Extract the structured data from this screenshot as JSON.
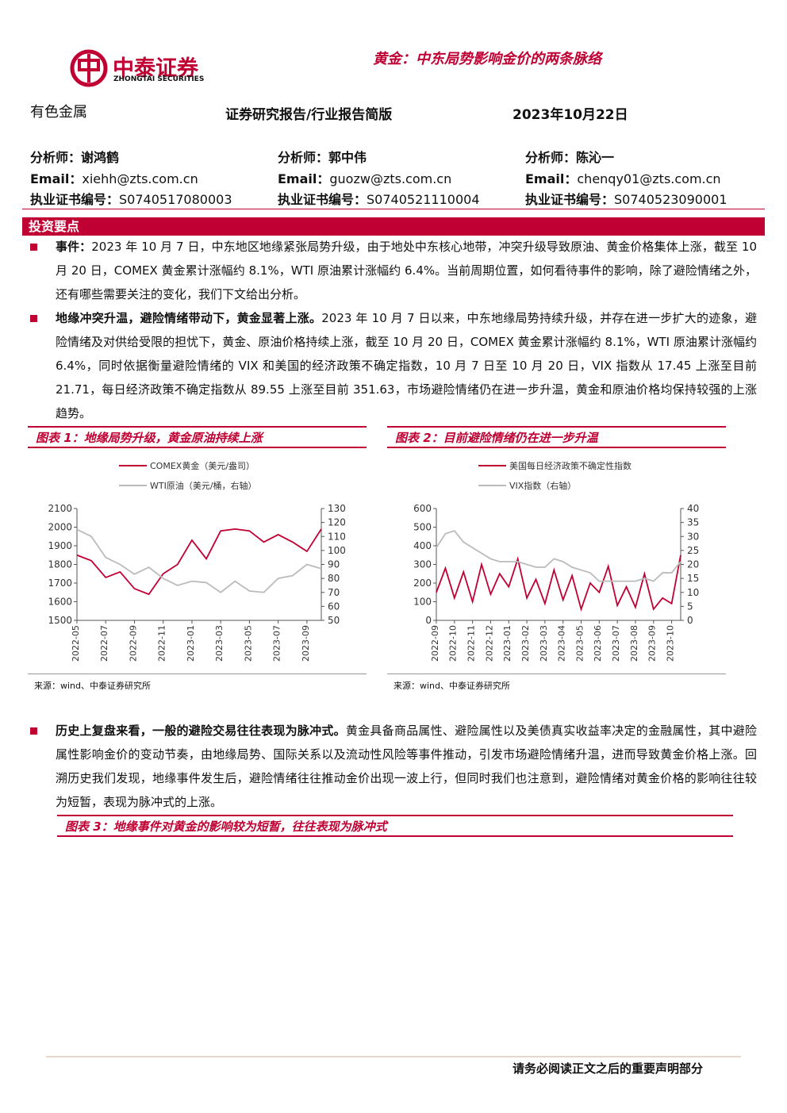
{
  "header": {
    "logo_cn": "中泰证券",
    "logo_en": "ZHONGTAI SECURITIES",
    "title": "黄金：中东局势影响金价的两条脉络",
    "sector": "有色金属",
    "report_type": "证券研究报告/行业报告简版",
    "date": "2023年10月22日"
  },
  "analysts": [
    {
      "name_label": "分析师：",
      "name": "谢鸿鹤",
      "email_label": "Email：",
      "email": "xiehh@zts.com.cn",
      "cert_label": "执业证书编号：",
      "cert": "S0740517080003"
    },
    {
      "name_label": "分析师：",
      "name": "郭中伟",
      "email_label": "Email：",
      "email": "guozw@zts.com.cn",
      "cert_label": "执业证书编号：",
      "cert": "S0740521110004"
    },
    {
      "name_label": "分析师：",
      "name": "陈沁一",
      "email_label": "Email：",
      "email": "chenqy01@zts.com.cn",
      "cert_label": "执业证书编号：",
      "cert": "S0740523090001"
    }
  ],
  "section_title": "投资要点",
  "paragraphs": [
    {
      "lead": "事件：",
      "text": "2023 年 10 月 7 日，中东地区地缘紧张局势升级，由于地处中东核心地带，冲突升级导致原油、黄金价格集体上涨，截至 10 月 20 日，COMEX 黄金累计涨幅约 8.1%，WTI 原油累计涨幅约 6.4%。当前周期位置，如何看待事件的影响，除了避险情绪之外，还有哪些需要关注的变化，我们下文给出分析。"
    },
    {
      "lead": "地缘冲突升温，避险情绪带动下，黄金显著上涨。",
      "text": "2023 年 10 月 7 日以来，中东地缘局势持续升级，并存在进一步扩大的迹象，避险情绪及对供给受限的担忧下，黄金、原油价格持续上涨，截至 10 月 20 日，COMEX 黄金累计涨幅约 8.1%，WTI 原油累计涨幅约 6.4%，同时依据衡量避险情绪的 VIX 和美国的经济政策不确定指数，10 月 7 日至 10 月 20 日，VIX 指数从 17.45 上涨至目前 21.71，每日经济政策不确定指数从 89.55 上涨至目前 351.63，市场避险情绪仍在进一步升温，黄金和原油价格均保持较强的上涨趋势。"
    },
    {
      "lead": "历史上复盘来看，一般的避险交易往往表现为脉冲式。",
      "text": "黄金具备商品属性、避险属性以及美债真实收益率决定的金融属性，其中避险属性影响金价的变动节奏，由地缘局势、国际关系以及流动性风险等事件推动，引发市场避险情绪升温，进而导致黄金价格上涨。回溯历史我们发现，地缘事件发生后，避险情绪往往推动金价出现一波上行，但同时我们也注意到，避险情绪对黄金价格的影响往往较为短暂，表现为脉冲式的上涨。"
    }
  ],
  "figures": [
    {
      "caption": "图表 1：地缘局势升级，黄金原油持续上涨",
      "source": "来源：wind、中泰证券研究所",
      "chart": {
        "type": "line",
        "x": [
          "2022-05",
          null,
          "2022-07",
          null,
          "2022-09",
          null,
          "2022-11",
          null,
          "2023-01",
          null,
          "2023-03",
          null,
          "2023-05",
          null,
          "2023-07",
          null,
          "2023-09",
          null
        ],
        "series": [
          {
            "name": "COMEX黄金（美元/盎司）",
            "color": "#c00033",
            "values": [
              1850,
              1820,
              1730,
              1760,
              1670,
              1640,
              1750,
              1800,
              1930,
              1830,
              1980,
              1990,
              1980,
              1920,
              1960,
              1920,
              1870,
              1990
            ]
          },
          {
            "name": "WTI原油（美元/桶，右轴）",
            "color": "#bbbbbb",
            "axis": "y2",
            "values": [
              115,
              110,
              95,
              90,
              83,
              88,
              80,
              75,
              78,
              77,
              70,
              78,
              71,
              70,
              80,
              82,
              90,
              87
            ]
          }
        ],
        "ylim": [
          1500,
          2100
        ],
        "yticks": [
          1500,
          1600,
          1700,
          1800,
          1900,
          2000,
          2100
        ],
        "y2lim": [
          50,
          130
        ],
        "y2ticks": [
          50,
          60,
          70,
          80,
          90,
          100,
          110,
          120,
          130
        ]
      }
    },
    {
      "caption": "图表 2：目前避险情绪仍在进一步升温",
      "source": "来源：wind、中泰证券研究所",
      "chart": {
        "type": "line",
        "x": [
          "2022-09",
          null,
          "2022-10",
          null,
          "2022-11",
          null,
          "2022-12",
          null,
          "2023-01",
          null,
          "2023-02",
          null,
          "2023-03",
          null,
          "2023-04",
          null,
          "2023-05",
          null,
          "2023-06",
          null,
          "2023-07",
          null,
          "2023-08",
          null,
          "2023-09",
          null,
          "2023-10",
          null
        ],
        "series": [
          {
            "name": "美国每日经济政策不确定性指数",
            "color": "#c00033",
            "values": [
              150,
              280,
              120,
              260,
              100,
              300,
              140,
              250,
              180,
              330,
              120,
              220,
              90,
              270,
              110,
              240,
              60,
              200,
              150,
              290,
              80,
              180,
              70,
              250,
              60,
              120,
              90,
              350
            ]
          },
          {
            "name": "VIX指数（右轴）",
            "color": "#bbbbbb",
            "axis": "y2",
            "values": [
              26,
              31,
              32,
              28,
              26,
              24,
              22,
              21,
              21,
              21,
              20,
              19,
              19,
              22,
              21,
              19,
              18,
              17,
              14,
              14,
              14,
              14,
              14,
              15,
              14,
              17,
              17,
              21
            ]
          }
        ],
        "ylim": [
          0,
          600
        ],
        "yticks": [
          0,
          100,
          200,
          300,
          400,
          500,
          600
        ],
        "y2lim": [
          0,
          40
        ],
        "y2ticks": [
          0,
          5,
          10,
          15,
          20,
          25,
          30,
          35,
          40
        ]
      }
    }
  ],
  "figure3_caption": "图表 3：地缘事件对黄金的影响较为短暂，往往表现为脉冲式",
  "footer": "请务必阅读正文之后的重要声明部分"
}
